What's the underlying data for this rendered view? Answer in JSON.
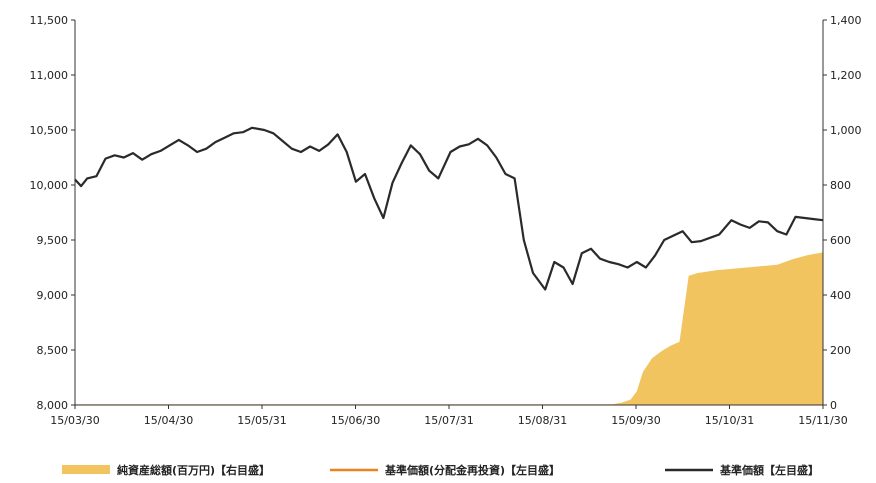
{
  "chart_data": {
    "type": "line",
    "x_ticks": [
      "15/03/30",
      "15/04/30",
      "15/05/31",
      "15/06/30",
      "15/07/31",
      "15/08/31",
      "15/09/30",
      "15/10/31",
      "15/11/30"
    ],
    "y_left_ticks": [
      "8,000",
      "8,500",
      "9,000",
      "9,500",
      "10,000",
      "10,500",
      "11,000",
      "11,500"
    ],
    "y_right_ticks": [
      "0",
      "200",
      "400",
      "600",
      "800",
      "1,000",
      "1,200",
      "1,400"
    ],
    "ylim_left": [
      8000,
      11500
    ],
    "ylim_right": [
      0,
      1400
    ],
    "xlim": [
      "2015-03-30",
      "2015-11-30"
    ],
    "grid": false,
    "legend_position": "bottom",
    "legend": [
      {
        "label": "純資産総額(百万円)【右目盛】",
        "color": "#f2c45f",
        "style": "area"
      },
      {
        "label": "基準価額(分配金再投資)【左目盛】",
        "color": "#e8831f",
        "style": "line"
      },
      {
        "label": "基準価額【左目盛】",
        "color": "#2a2a2a",
        "style": "line"
      }
    ],
    "series": [
      {
        "name": "純資産総額(百万円)【右目盛】",
        "axis": "right",
        "type": "area",
        "color": "#f2c45f",
        "x": [
          "2015-03-30",
          "2015-08-31",
          "2015-09-22",
          "2015-09-25",
          "2015-09-28",
          "2015-09-30",
          "2015-10-02",
          "2015-10-05",
          "2015-10-08",
          "2015-10-11",
          "2015-10-14",
          "2015-10-17",
          "2015-10-20",
          "2015-10-23",
          "2015-10-26",
          "2015-10-31",
          "2015-11-05",
          "2015-11-10",
          "2015-11-15",
          "2015-11-20",
          "2015-11-25",
          "2015-11-30"
        ],
        "values": [
          3,
          3,
          3,
          8,
          20,
          50,
          120,
          170,
          195,
          215,
          230,
          470,
          480,
          485,
          490,
          495,
          500,
          505,
          510,
          530,
          545,
          555
        ]
      },
      {
        "name": "基準価額(分配金再投資)【左目盛】",
        "axis": "left",
        "type": "line",
        "color": "#e8831f",
        "x": [
          "2015-03-30",
          "2015-11-30"
        ],
        "values": [
          null,
          null
        ]
      },
      {
        "name": "基準価額【左目盛】",
        "axis": "left",
        "type": "line",
        "color": "#2a2a2a",
        "x": [
          "2015-03-30",
          "2015-04-01",
          "2015-04-03",
          "2015-04-06",
          "2015-04-09",
          "2015-04-12",
          "2015-04-15",
          "2015-04-18",
          "2015-04-21",
          "2015-04-24",
          "2015-04-27",
          "2015-04-30",
          "2015-05-03",
          "2015-05-06",
          "2015-05-09",
          "2015-05-12",
          "2015-05-15",
          "2015-05-18",
          "2015-05-21",
          "2015-05-24",
          "2015-05-27",
          "2015-05-31",
          "2015-06-03",
          "2015-06-06",
          "2015-06-09",
          "2015-06-12",
          "2015-06-15",
          "2015-06-18",
          "2015-06-21",
          "2015-06-24",
          "2015-06-27",
          "2015-06-30",
          "2015-07-03",
          "2015-07-06",
          "2015-07-09",
          "2015-07-12",
          "2015-07-15",
          "2015-07-18",
          "2015-07-21",
          "2015-07-24",
          "2015-07-27",
          "2015-07-31",
          "2015-08-03",
          "2015-08-06",
          "2015-08-09",
          "2015-08-12",
          "2015-08-15",
          "2015-08-18",
          "2015-08-21",
          "2015-08-24",
          "2015-08-27",
          "2015-08-31",
          "2015-09-03",
          "2015-09-06",
          "2015-09-09",
          "2015-09-12",
          "2015-09-15",
          "2015-09-18",
          "2015-09-21",
          "2015-09-24",
          "2015-09-27",
          "2015-09-30",
          "2015-10-03",
          "2015-10-06",
          "2015-10-09",
          "2015-10-12",
          "2015-10-15",
          "2015-10-18",
          "2015-10-21",
          "2015-10-24",
          "2015-10-27",
          "2015-10-31",
          "2015-11-03",
          "2015-11-06",
          "2015-11-09",
          "2015-11-12",
          "2015-11-15",
          "2015-11-18",
          "2015-11-21",
          "2015-11-24",
          "2015-11-27",
          "2015-11-30"
        ],
        "values": [
          10050,
          9990,
          10060,
          10080,
          10240,
          10270,
          10250,
          10290,
          10230,
          10280,
          10310,
          10360,
          10410,
          10360,
          10300,
          10330,
          10390,
          10430,
          10470,
          10480,
          10520,
          10500,
          10470,
          10400,
          10330,
          10300,
          10350,
          10310,
          10370,
          10460,
          10300,
          10030,
          10100,
          9880,
          9700,
          10020,
          10200,
          10360,
          10280,
          10130,
          10060,
          10300,
          10350,
          10370,
          10420,
          10360,
          10250,
          10100,
          10060,
          9500,
          9200,
          9050,
          9300,
          9250,
          9100,
          9380,
          9420,
          9330,
          9300,
          9280,
          9250,
          9300,
          9250,
          9360,
          9500,
          9540,
          9580,
          9480,
          9490,
          9520,
          9550,
          9680,
          9640,
          9610,
          9670,
          9660,
          9580,
          9550,
          9710,
          9700,
          9690,
          9680
        ]
      }
    ]
  }
}
